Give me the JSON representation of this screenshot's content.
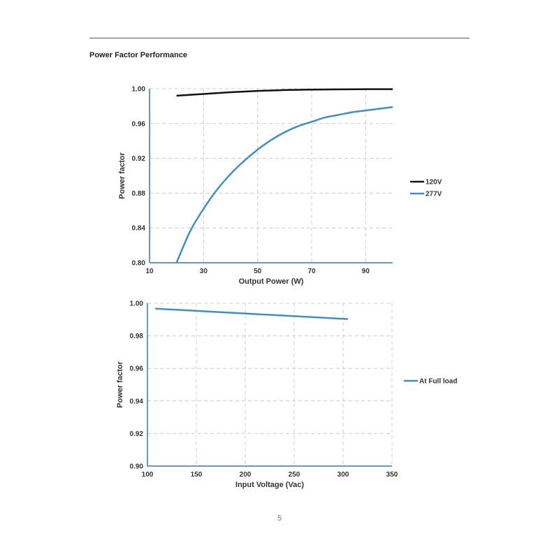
{
  "page": {
    "section_title": "Power Factor Performance",
    "page_number": "5"
  },
  "chart_data": [
    {
      "type": "line",
      "xlabel": "Output Power (W)",
      "ylabel": "Power factor",
      "xlim": [
        10,
        100
      ],
      "ylim": [
        0.8,
        1.0
      ],
      "x_ticks": [
        "10",
        "30",
        "50",
        "70",
        "90"
      ],
      "y_ticks": [
        "0.80",
        "0.84",
        "0.88",
        "0.92",
        "0.96",
        "1.00"
      ],
      "grid": true,
      "legend_position": "right",
      "series": [
        {
          "name": "120V",
          "color": "#111111",
          "x": [
            20,
            30,
            40,
            50,
            60,
            70,
            80,
            90,
            100
          ],
          "y": [
            0.992,
            0.994,
            0.996,
            0.9975,
            0.9985,
            0.999,
            0.9993,
            0.9995,
            0.9995
          ]
        },
        {
          "name": "277V",
          "color": "#3d8fc6",
          "x": [
            20,
            25,
            30,
            35,
            40,
            45,
            50,
            55,
            60,
            65,
            70,
            75,
            80,
            85,
            90,
            95,
            100
          ],
          "y": [
            0.8,
            0.836,
            0.862,
            0.884,
            0.902,
            0.917,
            0.93,
            0.941,
            0.95,
            0.957,
            0.962,
            0.967,
            0.97,
            0.973,
            0.975,
            0.977,
            0.979
          ]
        }
      ]
    },
    {
      "type": "line",
      "xlabel": "Input Voltage (Vac)",
      "ylabel": "Power factor",
      "xlim": [
        100,
        350
      ],
      "ylim": [
        0.9,
        1.0
      ],
      "x_ticks": [
        "100",
        "150",
        "200",
        "250",
        "300",
        "350"
      ],
      "y_ticks": [
        "0.90",
        "0.92",
        "0.94",
        "0.96",
        "0.98",
        "1.00"
      ],
      "grid": true,
      "legend_position": "right",
      "series": [
        {
          "name": "At Full load",
          "color": "#3d8fc6",
          "x": [
            108,
            305
          ],
          "y": [
            0.9967,
            0.9903
          ]
        }
      ]
    }
  ]
}
